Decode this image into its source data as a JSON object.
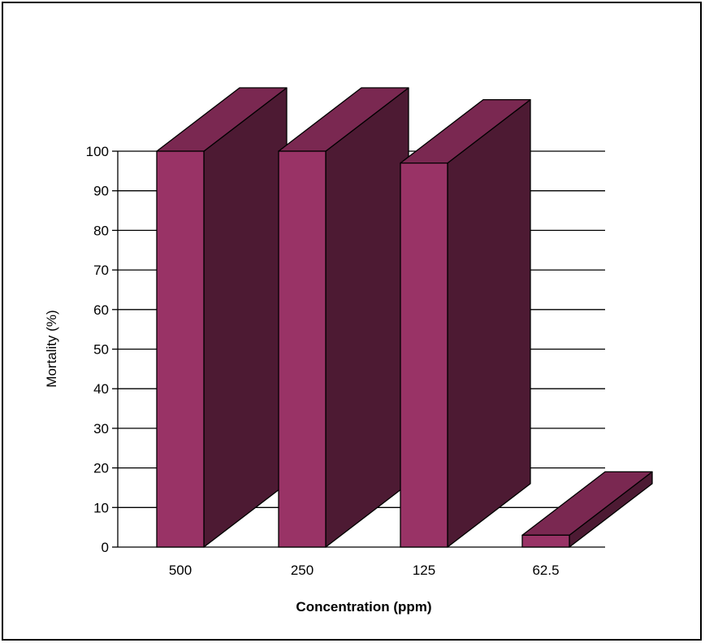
{
  "chart_data": {
    "type": "bar",
    "style": "3d",
    "categories": [
      "500",
      "250",
      "125",
      "62.5"
    ],
    "values": [
      100,
      100,
      97,
      3
    ],
    "xlabel": "Concentration (ppm)",
    "ylabel": "Mortality (%)",
    "ylim": [
      0,
      100
    ],
    "yticks": [
      0,
      10,
      20,
      30,
      40,
      50,
      60,
      70,
      80,
      90,
      100
    ],
    "grid": true,
    "colors": {
      "front": "#993366",
      "side": "#4D1A33",
      "top": "#7A2851",
      "outline": "#000000",
      "grid": "#000000"
    }
  }
}
